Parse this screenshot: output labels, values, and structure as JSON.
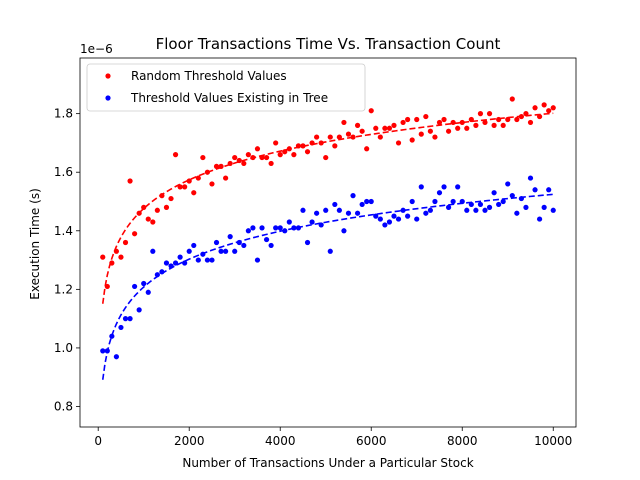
{
  "chart_data": {
    "type": "scatter",
    "title": "Floor Transactions Time Vs. Transaction Count",
    "xlabel": "Number of Transactions Under a Particular Stock",
    "ylabel": "Execution Time (s)",
    "y_offset_label": "1e−6",
    "y_scale_factor": 1e-06,
    "xlim": [
      -400,
      10500
    ],
    "ylim": [
      0.73,
      1.99
    ],
    "xticks": [
      0,
      2000,
      4000,
      6000,
      8000,
      10000
    ],
    "xtick_labels": [
      "0",
      "2000",
      "4000",
      "6000",
      "8000",
      "10000"
    ],
    "yticks": [
      0.8,
      1.0,
      1.2,
      1.4,
      1.6,
      1.8
    ],
    "ytick_labels": [
      "0.8",
      "1.0",
      "1.2",
      "1.4",
      "1.6",
      "1.8"
    ],
    "grid": false,
    "legend_position": "top-left",
    "x": [
      100,
      200,
      300,
      400,
      500,
      600,
      700,
      800,
      900,
      1000,
      1100,
      1200,
      1300,
      1400,
      1500,
      1600,
      1700,
      1800,
      1900,
      2000,
      2100,
      2200,
      2300,
      2400,
      2500,
      2600,
      2700,
      2800,
      2900,
      3000,
      3100,
      3200,
      3300,
      3400,
      3500,
      3600,
      3700,
      3800,
      3900,
      4000,
      4100,
      4200,
      4300,
      4400,
      4500,
      4600,
      4700,
      4800,
      4900,
      5000,
      5100,
      5200,
      5300,
      5400,
      5500,
      5600,
      5700,
      5800,
      5900,
      6000,
      6100,
      6200,
      6300,
      6400,
      6500,
      6600,
      6700,
      6800,
      6900,
      7000,
      7100,
      7200,
      7300,
      7400,
      7500,
      7600,
      7700,
      7800,
      7900,
      8000,
      8100,
      8200,
      8300,
      8400,
      8500,
      8600,
      8700,
      8800,
      8900,
      9000,
      9100,
      9200,
      9300,
      9400,
      9500,
      9600,
      9700,
      9800,
      9900,
      10000
    ],
    "series": [
      {
        "name": "Random Threshold Values",
        "color": "#ff0000",
        "values": [
          1.31,
          1.21,
          1.29,
          1.33,
          1.31,
          1.36,
          1.57,
          1.39,
          1.46,
          1.48,
          1.44,
          1.43,
          1.47,
          1.52,
          1.48,
          1.51,
          1.66,
          1.55,
          1.55,
          1.57,
          1.53,
          1.58,
          1.65,
          1.6,
          1.56,
          1.62,
          1.62,
          1.58,
          1.63,
          1.65,
          1.64,
          1.63,
          1.66,
          1.65,
          1.68,
          1.65,
          1.65,
          1.63,
          1.7,
          1.66,
          1.67,
          1.68,
          1.66,
          1.69,
          1.69,
          1.67,
          1.7,
          1.72,
          1.7,
          1.65,
          1.72,
          1.69,
          1.72,
          1.77,
          1.73,
          1.72,
          1.76,
          1.74,
          1.68,
          1.81,
          1.75,
          1.72,
          1.75,
          1.75,
          1.76,
          1.7,
          1.77,
          1.78,
          1.71,
          1.78,
          1.73,
          1.79,
          1.74,
          1.72,
          1.77,
          1.78,
          1.74,
          1.77,
          1.75,
          1.77,
          1.75,
          1.78,
          1.76,
          1.8,
          1.77,
          1.8,
          1.76,
          1.78,
          1.76,
          1.78,
          1.85,
          1.78,
          1.79,
          1.8,
          1.77,
          1.82,
          1.79,
          1.83,
          1.81,
          1.82
        ],
        "fit_line": "dashed"
      },
      {
        "name": "Threshold Values Existing in Tree",
        "color": "#0000ff",
        "values": [
          0.99,
          0.99,
          1.04,
          0.97,
          1.07,
          1.1,
          1.1,
          1.21,
          1.13,
          1.22,
          1.19,
          1.33,
          1.25,
          1.26,
          1.29,
          1.28,
          1.29,
          1.31,
          1.29,
          1.33,
          1.35,
          1.3,
          1.32,
          1.3,
          1.3,
          1.36,
          1.33,
          1.33,
          1.38,
          1.33,
          1.36,
          1.35,
          1.4,
          1.41,
          1.3,
          1.41,
          1.37,
          1.35,
          1.41,
          1.41,
          1.4,
          1.43,
          1.41,
          1.41,
          1.47,
          1.36,
          1.43,
          1.46,
          1.42,
          1.47,
          1.33,
          1.49,
          1.47,
          1.4,
          1.46,
          1.52,
          1.46,
          1.49,
          1.5,
          1.5,
          1.45,
          1.44,
          1.42,
          1.43,
          1.45,
          1.44,
          1.47,
          1.45,
          1.5,
          1.44,
          1.55,
          1.46,
          1.47,
          1.5,
          1.53,
          1.55,
          1.48,
          1.5,
          1.55,
          1.5,
          1.47,
          1.49,
          1.47,
          1.49,
          1.47,
          1.48,
          1.53,
          1.49,
          1.5,
          1.56,
          1.52,
          1.46,
          1.51,
          1.48,
          1.58,
          1.54,
          1.44,
          1.48,
          1.54,
          1.47
        ],
        "fit_line": "dashed"
      }
    ]
  }
}
